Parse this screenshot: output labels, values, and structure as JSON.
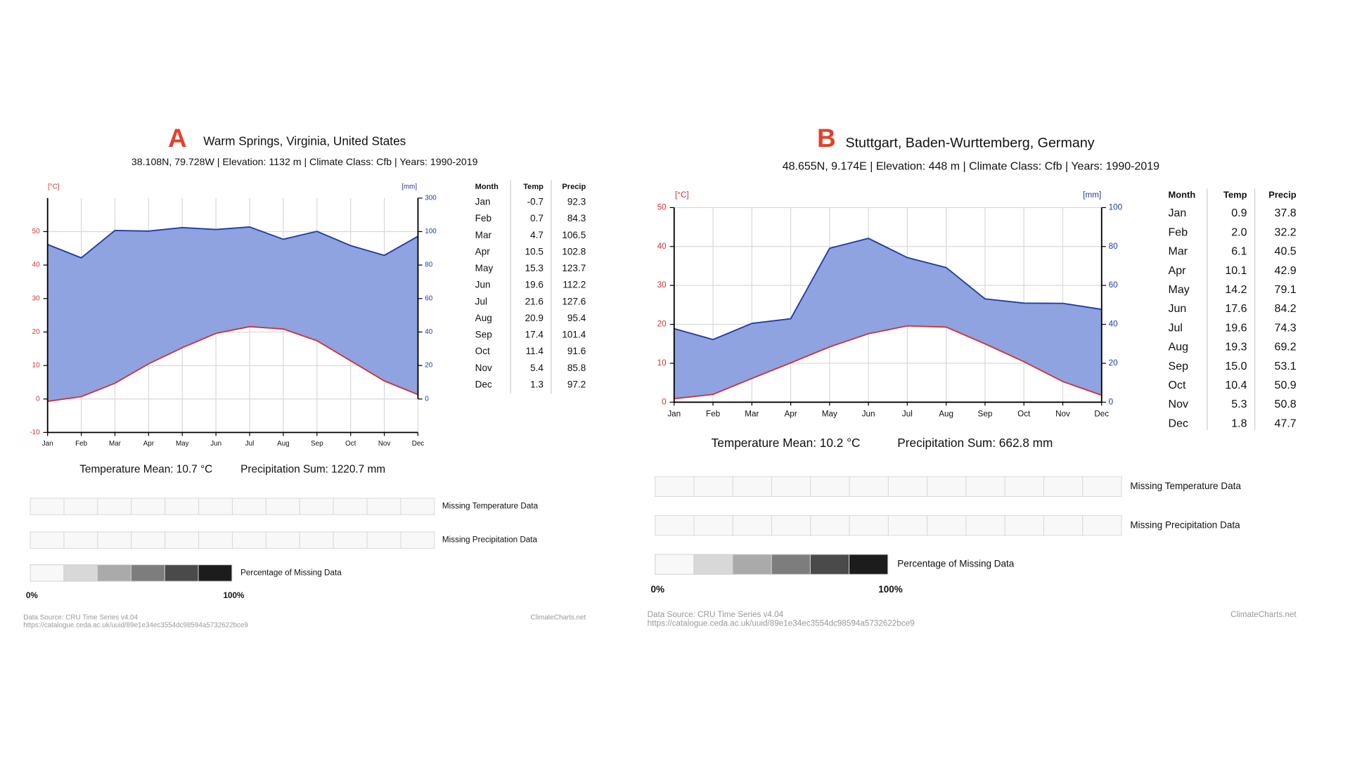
{
  "chart_data": [
    {
      "type": "climate",
      "label": "A",
      "title": "Warm Springs, Virginia, United States",
      "subtitle": "38.108N, 79.728W | Elevation: 1132 m | Climate Class: Cfb | Years: 1990-2019",
      "ylabel": "[°C]",
      "y2label": "[mm]",
      "categories": [
        "Jan",
        "Feb",
        "Mar",
        "Apr",
        "May",
        "Jun",
        "Jul",
        "Aug",
        "Sep",
        "Oct",
        "Nov",
        "Dec"
      ],
      "series": [
        {
          "name": "Temp",
          "color": "#d62f2f",
          "values": [
            -0.7,
            0.7,
            4.7,
            10.5,
            15.3,
            19.6,
            21.6,
            20.9,
            17.4,
            11.4,
            5.4,
            1.3
          ]
        },
        {
          "name": "Precip",
          "color": "#1f3aa8",
          "axis": "y2",
          "values": [
            92.3,
            84.3,
            106.5,
            102.8,
            123.7,
            112.2,
            127.6,
            95.4,
            101.4,
            91.6,
            85.8,
            97.2
          ]
        }
      ],
      "fill_color": "#8ea3df",
      "ylim": [
        -10,
        60
      ],
      "yticks": [
        -10,
        0,
        10,
        20,
        30,
        40,
        50
      ],
      "y2lim": [
        0,
        300
      ],
      "y2ticks": [
        0,
        20,
        40,
        60,
        80,
        100,
        300
      ],
      "grid": true,
      "table_month_header": "Month",
      "temperature_mean": "Temperature Mean: 10.7 °C",
      "precipitation_sum": "Precipitation Sum: 1220.7 mm",
      "missing_temperature_label": "Missing Temperature Data",
      "missing_precipitation_label": "Missing Precipitation Data",
      "missing_legend_label": "Percentage of Missing Data",
      "missing_legend_min": "0%",
      "missing_legend_max": "100%",
      "source": "Data Source: CRU Time Series v4.04",
      "source_url": "https://catalogue.ceda.ac.uk/uuid/89e1e34ec3554dc98594a5732622bce9",
      "credit": "ClimateCharts.net"
    },
    {
      "type": "climate",
      "label": "B",
      "title": "Stuttgart, Baden-Wurttemberg, Germany",
      "subtitle": "48.655N, 9.174E | Elevation: 448 m | Climate Class: Cfb | Years: 1990-2019",
      "ylabel": "[°C]",
      "y2label": "[mm]",
      "categories": [
        "Jan",
        "Feb",
        "Mar",
        "Apr",
        "May",
        "Jun",
        "Jul",
        "Aug",
        "Sep",
        "Oct",
        "Nov",
        "Dec"
      ],
      "series": [
        {
          "name": "Temp",
          "color": "#d62f2f",
          "values": [
            0.9,
            2.0,
            6.1,
            10.1,
            14.2,
            17.6,
            19.6,
            19.3,
            15.0,
            10.4,
            5.3,
            1.8
          ],
          "value_labels": [
            "0.9",
            "2.0",
            "6.1",
            "10.1",
            "14.2",
            "17.6",
            "19.6",
            "19.3",
            "15.0",
            "10.4",
            "5.3",
            "1.8"
          ]
        },
        {
          "name": "Precip",
          "color": "#1f3aa8",
          "axis": "y2",
          "values": [
            37.8,
            32.2,
            40.5,
            42.9,
            79.1,
            84.2,
            74.3,
            69.2,
            53.1,
            50.9,
            50.8,
            47.7
          ]
        }
      ],
      "fill_color": "#8ea3df",
      "ylim": [
        0,
        50
      ],
      "yticks": [
        0,
        10,
        20,
        30,
        40,
        50
      ],
      "y2lim": [
        0,
        100
      ],
      "y2ticks": [
        0,
        20,
        40,
        60,
        80,
        100
      ],
      "grid": true,
      "table_month_header": "Month",
      "temperature_mean": "Temperature Mean: 10.2 °C",
      "precipitation_sum": "Precipitation Sum: 662.8 mm",
      "missing_temperature_label": "Missing Temperature Data",
      "missing_precipitation_label": "Missing Precipitation Data",
      "missing_legend_label": "Percentage of Missing Data",
      "missing_legend_min": "0%",
      "missing_legend_max": "100%",
      "source": "Data Source: CRU Time Series v4.04",
      "source_url": "https://catalogue.ceda.ac.uk/uuid/89e1e34ec3554dc98594a5732622bce9",
      "credit": "ClimateCharts.net"
    }
  ]
}
